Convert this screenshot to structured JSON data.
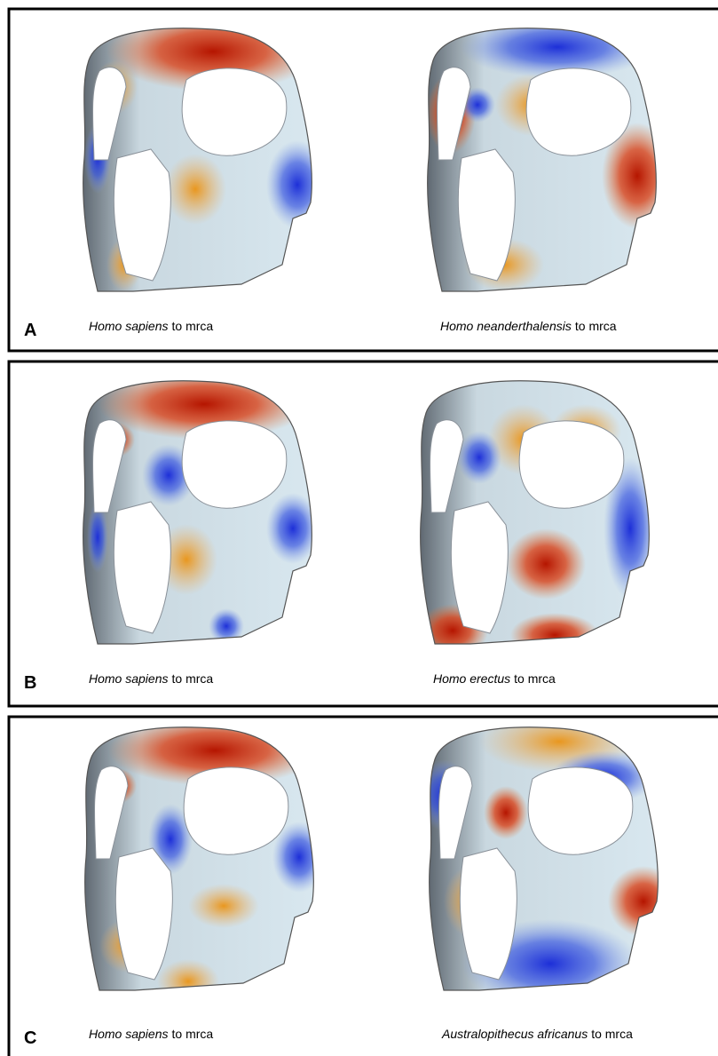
{
  "panels": [
    {
      "label": "A",
      "captions": [
        {
          "species": "Homo sapiens",
          "suffix": "to mrca"
        },
        {
          "species": "Homo neanderthalensis",
          "suffix": "to mrca"
        }
      ]
    },
    {
      "label": "B",
      "captions": [
        {
          "species": "Homo sapiens",
          "suffix": "to mrca"
        },
        {
          "species": "Homo erectus",
          "suffix": "to mrca"
        }
      ]
    },
    {
      "label": "C",
      "captions": [
        {
          "species": "Homo sapiens",
          "suffix": "to mrca"
        },
        {
          "species": "Australopithecus africanus",
          "suffix": "to mrca"
        }
      ]
    }
  ]
}
